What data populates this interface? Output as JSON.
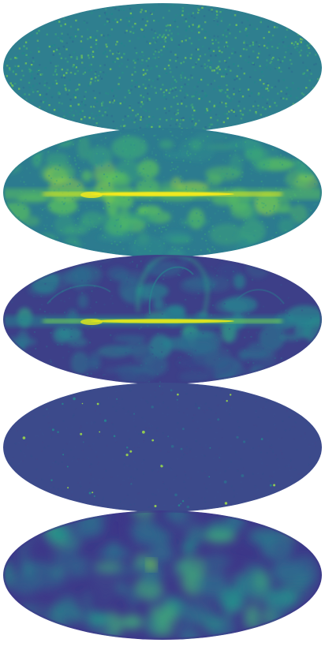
{
  "figure": {
    "background_color": "#ffffff",
    "projection": "mollweide",
    "colormap": "viridis",
    "maps": [
      {
        "id": "noise-map",
        "structure": "noise",
        "palette": [
          "#2f7f8f",
          "#2a8a88",
          "#3a9f7c",
          "#24868c",
          "#48aa74",
          "#2e6f8f",
          "#6cc15b"
        ]
      },
      {
        "id": "galactic-plane-bright-map",
        "structure": "galactic-plane",
        "palette": [
          "#2c7b8f",
          "#2f8e8c",
          "#3aa57a",
          "#5ac15e",
          "#9fd93c",
          "#d8e520",
          "#f3e91e"
        ]
      },
      {
        "id": "galactic-plane-loops-map",
        "structure": "galactic-plane-loops",
        "palette": [
          "#3d3f88",
          "#35508c",
          "#2e6a8e",
          "#278690",
          "#2fa585",
          "#6fcf55",
          "#e0e61d"
        ]
      },
      {
        "id": "point-sources-map",
        "structure": "point-sources",
        "palette": [
          "#3c4a8b",
          "#3a4f8d",
          "#41478a",
          "#354e8c",
          "#2f6a8e",
          "#26858e",
          "#9bd84a"
        ]
      },
      {
        "id": "large-scale-fluctuations-map",
        "structure": "fluctuations",
        "palette": [
          "#3d3889",
          "#3b4c8c",
          "#2f6b8e",
          "#2a7f8e",
          "#24968b",
          "#3fab7b",
          "#8ad645"
        ]
      }
    ]
  }
}
